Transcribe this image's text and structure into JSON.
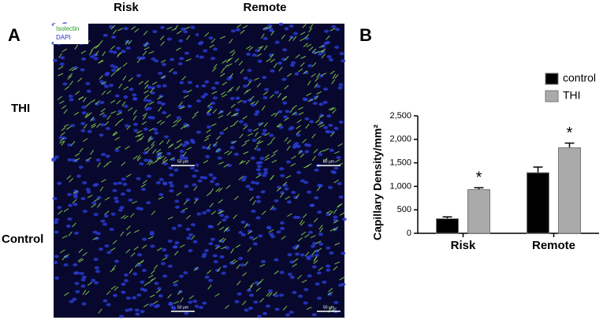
{
  "panel_a": {
    "letter": "A",
    "columns": [
      "Risk",
      "Remote"
    ],
    "rows": [
      "THI",
      "Control"
    ],
    "stain_legend": [
      "Isolectin",
      "DAPI"
    ],
    "scale_bar": "50 μm"
  },
  "chart_data": {
    "type": "bar",
    "letter": "B",
    "y_label": "Capillary Density/mm²",
    "categories": [
      "Risk",
      "Remote"
    ],
    "series": [
      {
        "name": "control",
        "color": "#000000",
        "values": [
          310,
          1290
        ],
        "errors": [
          40,
          120
        ]
      },
      {
        "name": "THI",
        "color": "#aaaaaa",
        "values": [
          930,
          1820
        ],
        "errors": [
          40,
          100
        ]
      }
    ],
    "annotations": [
      "*",
      "*"
    ],
    "ylim": [
      0,
      2500
    ],
    "yticks": [
      0,
      500,
      {
        "value": 1000,
        "label": "1,000"
      },
      {
        "value": 1500,
        "label": "1,500"
      },
      {
        "value": 2000,
        "label": "2,000"
      },
      {
        "value": 2500,
        "label": "2,500"
      }
    ]
  }
}
